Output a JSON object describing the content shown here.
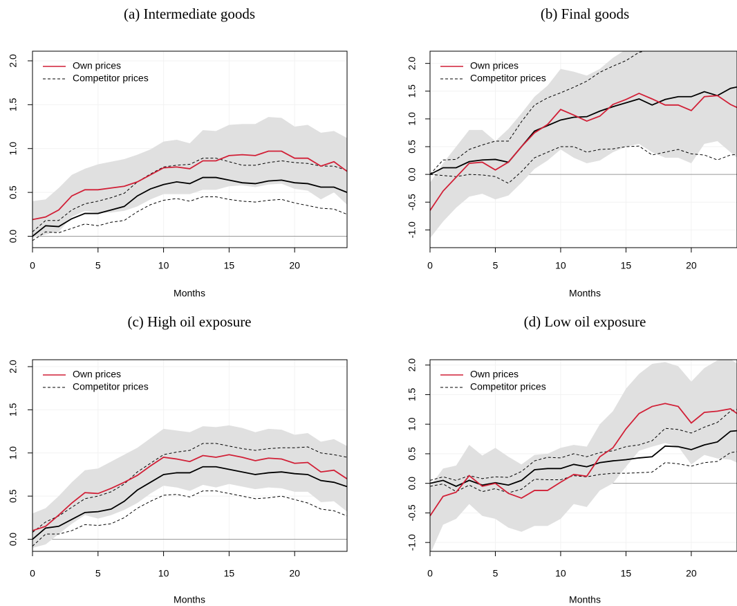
{
  "chart_data": [
    {
      "type": "line",
      "title": "(a) Intermediate goods",
      "x_label": "Months",
      "x": [
        0,
        1,
        2,
        3,
        4,
        5,
        6,
        7,
        8,
        9,
        10,
        11,
        12,
        13,
        14,
        15,
        16,
        17,
        18,
        19,
        20,
        21,
        22,
        23,
        24
      ],
      "xlim": [
        0,
        24
      ],
      "xticks": [
        0,
        5,
        10,
        15,
        20
      ],
      "ylim": [
        -0.13,
        2.11
      ],
      "yticks": [
        {
          "value": 0,
          "label": "0.0"
        },
        0.5,
        {
          "value": 1,
          "label": "1.0"
        },
        1.5,
        {
          "value": 2,
          "label": "2.0"
        }
      ],
      "grid": true,
      "legend": "top-left",
      "series": [
        {
          "name": "Own prices",
          "color": "#d11f36",
          "values": [
            0.19,
            0.22,
            0.3,
            0.46,
            0.53,
            0.53,
            0.55,
            0.57,
            0.62,
            0.7,
            0.78,
            0.79,
            0.77,
            0.86,
            0.86,
            0.92,
            0.93,
            0.92,
            0.97,
            0.97,
            0.89,
            0.89,
            0.8,
            0.85,
            0.74
          ],
          "band": {
            "color": "#e0e0e0",
            "upper": [
              0.4,
              0.42,
              0.55,
              0.7,
              0.77,
              0.82,
              0.85,
              0.88,
              0.93,
              0.99,
              1.08,
              1.1,
              1.06,
              1.21,
              1.2,
              1.27,
              1.28,
              1.28,
              1.36,
              1.35,
              1.25,
              1.27,
              1.18,
              1.2,
              1.12
            ],
            "lower": [
              -0.02,
              0.02,
              0.05,
              0.22,
              0.29,
              0.27,
              0.27,
              0.29,
              0.34,
              0.42,
              0.48,
              0.48,
              0.48,
              0.53,
              0.53,
              0.57,
              0.58,
              0.56,
              0.59,
              0.6,
              0.54,
              0.52,
              0.42,
              0.5,
              0.36
            ]
          }
        },
        {
          "name": "Competitor prices",
          "color": "#000000",
          "legend_dash": true,
          "values": [
            0.0,
            0.12,
            0.11,
            0.2,
            0.26,
            0.26,
            0.3,
            0.34,
            0.46,
            0.54,
            0.59,
            0.62,
            0.6,
            0.67,
            0.67,
            0.64,
            0.61,
            0.6,
            0.63,
            0.64,
            0.61,
            0.6,
            0.56,
            0.56,
            0.5
          ],
          "bounds": {
            "dash": true,
            "upper": [
              0.05,
              0.18,
              0.18,
              0.3,
              0.37,
              0.4,
              0.44,
              0.49,
              0.62,
              0.71,
              0.79,
              0.81,
              0.82,
              0.89,
              0.89,
              0.85,
              0.81,
              0.81,
              0.84,
              0.86,
              0.84,
              0.83,
              0.8,
              0.8,
              0.75
            ],
            "lower": [
              -0.05,
              0.05,
              0.04,
              0.09,
              0.14,
              0.12,
              0.16,
              0.18,
              0.28,
              0.36,
              0.41,
              0.43,
              0.4,
              0.45,
              0.45,
              0.42,
              0.4,
              0.39,
              0.41,
              0.42,
              0.38,
              0.35,
              0.32,
              0.31,
              0.25
            ]
          }
        }
      ]
    },
    {
      "type": "line",
      "title": "(b) Final goods",
      "x_label": "Months",
      "x": [
        0,
        1,
        2,
        3,
        4,
        5,
        6,
        7,
        8,
        9,
        10,
        11,
        12,
        13,
        14,
        15,
        16,
        17,
        18,
        19,
        20,
        21,
        22,
        23,
        24
      ],
      "xlim": [
        0,
        23.5
      ],
      "xticks": [
        0,
        5,
        10,
        15,
        20
      ],
      "ylim": [
        -1.32,
        2.22
      ],
      "yticks": [
        {
          "value": -1,
          "label": "-1.0"
        },
        -0.5,
        {
          "value": 0,
          "label": "0.0"
        },
        0.5,
        {
          "value": 1,
          "label": "1.0"
        },
        1.5,
        {
          "value": 2,
          "label": "2.0"
        }
      ],
      "grid": true,
      "legend": "top-left",
      "series": [
        {
          "name": "Own prices",
          "color": "#d11f36",
          "values": [
            -0.65,
            -0.3,
            -0.05,
            0.2,
            0.22,
            0.08,
            0.22,
            0.5,
            0.75,
            0.9,
            1.17,
            1.07,
            0.96,
            1.05,
            1.26,
            1.35,
            1.46,
            1.36,
            1.25,
            1.25,
            1.15,
            1.4,
            1.42,
            1.26,
            1.15
          ],
          "band": {
            "color": "#e0e0e0",
            "upper": [
              -0.15,
              0.2,
              0.5,
              0.8,
              0.8,
              0.6,
              0.82,
              1.1,
              1.4,
              1.6,
              1.9,
              1.85,
              1.78,
              1.9,
              2.1,
              2.25,
              2.3,
              2.3,
              2.3,
              2.3,
              2.3,
              2.3,
              2.3,
              2.25,
              2.2
            ],
            "lower": [
              -1.15,
              -0.85,
              -0.6,
              -0.4,
              -0.35,
              -0.45,
              -0.38,
              -0.15,
              0.1,
              0.25,
              0.45,
              0.3,
              0.2,
              0.25,
              0.4,
              0.5,
              0.55,
              0.4,
              0.3,
              0.3,
              0.2,
              0.55,
              0.6,
              0.4,
              0.2
            ]
          }
        },
        {
          "name": "Competitor prices",
          "color": "#000000",
          "legend_dash": true,
          "values": [
            0.0,
            0.12,
            0.12,
            0.23,
            0.26,
            0.27,
            0.22,
            0.5,
            0.78,
            0.88,
            0.98,
            1.03,
            1.04,
            1.14,
            1.22,
            1.29,
            1.36,
            1.25,
            1.35,
            1.4,
            1.4,
            1.49,
            1.42,
            1.55,
            1.6
          ],
          "bounds": {
            "dash": true,
            "upper": [
              0.0,
              0.26,
              0.27,
              0.45,
              0.53,
              0.6,
              0.6,
              0.95,
              1.25,
              1.38,
              1.47,
              1.57,
              1.68,
              1.84,
              1.95,
              2.05,
              2.2,
              2.25,
              2.3,
              2.35,
              2.35,
              2.4,
              2.4,
              2.45,
              2.5
            ],
            "lower": [
              0.0,
              -0.02,
              -0.04,
              0.0,
              -0.01,
              -0.04,
              -0.16,
              0.05,
              0.3,
              0.4,
              0.5,
              0.5,
              0.4,
              0.45,
              0.46,
              0.5,
              0.51,
              0.35,
              0.4,
              0.45,
              0.37,
              0.35,
              0.26,
              0.35,
              0.37
            ]
          }
        }
      ]
    },
    {
      "type": "line",
      "title": "(c) High oil exposure",
      "x_label": "Months",
      "x": [
        0,
        1,
        2,
        3,
        4,
        5,
        6,
        7,
        8,
        9,
        10,
        11,
        12,
        13,
        14,
        15,
        16,
        17,
        18,
        19,
        20,
        21,
        22,
        23,
        24
      ],
      "xlim": [
        0,
        24
      ],
      "xticks": [
        0,
        5,
        10,
        15,
        20
      ],
      "ylim": [
        -0.14,
        2.08
      ],
      "yticks": [
        {
          "value": 0,
          "label": "0.0"
        },
        0.5,
        {
          "value": 1,
          "label": "1.0"
        },
        1.5,
        {
          "value": 2,
          "label": "2.0"
        }
      ],
      "grid": true,
      "legend": "top-left",
      "series": [
        {
          "name": "Own prices",
          "color": "#d11f36",
          "values": [
            0.1,
            0.15,
            0.28,
            0.42,
            0.54,
            0.53,
            0.59,
            0.66,
            0.74,
            0.85,
            0.95,
            0.93,
            0.9,
            0.97,
            0.95,
            0.98,
            0.95,
            0.91,
            0.94,
            0.93,
            0.88,
            0.89,
            0.78,
            0.8,
            0.7
          ],
          "band": {
            "color": "#e0e0e0",
            "upper": [
              0.3,
              0.36,
              0.5,
              0.66,
              0.8,
              0.82,
              0.9,
              0.98,
              1.06,
              1.17,
              1.28,
              1.26,
              1.24,
              1.31,
              1.3,
              1.32,
              1.29,
              1.24,
              1.28,
              1.27,
              1.21,
              1.23,
              1.13,
              1.16,
              1.08
            ],
            "lower": [
              -0.1,
              -0.06,
              0.06,
              0.18,
              0.28,
              0.24,
              0.28,
              0.34,
              0.42,
              0.53,
              0.62,
              0.6,
              0.56,
              0.63,
              0.6,
              0.64,
              0.61,
              0.58,
              0.6,
              0.59,
              0.55,
              0.55,
              0.43,
              0.44,
              0.32
            ]
          }
        },
        {
          "name": "Competitor prices",
          "color": "#000000",
          "legend_dash": true,
          "values": [
            0.0,
            0.13,
            0.15,
            0.23,
            0.31,
            0.32,
            0.35,
            0.44,
            0.57,
            0.66,
            0.75,
            0.77,
            0.77,
            0.84,
            0.84,
            0.81,
            0.78,
            0.75,
            0.77,
            0.78,
            0.76,
            0.75,
            0.68,
            0.66,
            0.61
          ],
          "bounds": {
            "dash": true,
            "upper": [
              0.08,
              0.2,
              0.27,
              0.37,
              0.47,
              0.5,
              0.55,
              0.64,
              0.78,
              0.88,
              0.98,
              1.01,
              1.03,
              1.11,
              1.11,
              1.08,
              1.05,
              1.03,
              1.05,
              1.06,
              1.06,
              1.07,
              1.0,
              0.98,
              0.95
            ],
            "lower": [
              -0.08,
              0.06,
              0.06,
              0.1,
              0.17,
              0.16,
              0.18,
              0.25,
              0.36,
              0.44,
              0.51,
              0.52,
              0.49,
              0.56,
              0.56,
              0.53,
              0.5,
              0.47,
              0.48,
              0.5,
              0.46,
              0.42,
              0.35,
              0.33,
              0.27
            ]
          }
        }
      ]
    },
    {
      "type": "line",
      "title": "(d) Low oil exposure",
      "x_label": "Months",
      "x": [
        0,
        1,
        2,
        3,
        4,
        5,
        6,
        7,
        8,
        9,
        10,
        11,
        12,
        13,
        14,
        15,
        16,
        17,
        18,
        19,
        20,
        21,
        22,
        23,
        24
      ],
      "xlim": [
        0,
        23.5
      ],
      "xticks": [
        0,
        5,
        10,
        15,
        20
      ],
      "ylim": [
        -1.15,
        2.09
      ],
      "yticks": [
        {
          "value": -1,
          "label": "-1.0"
        },
        -0.5,
        {
          "value": 0,
          "label": "0.0"
        },
        0.5,
        {
          "value": 1,
          "label": "1.0"
        },
        1.5,
        {
          "value": 2,
          "label": "2.0"
        }
      ],
      "grid": true,
      "legend": "top-left",
      "series": [
        {
          "name": "Own prices",
          "color": "#d11f36",
          "values": [
            -0.55,
            -0.22,
            -0.15,
            0.13,
            -0.05,
            0.0,
            -0.17,
            -0.25,
            -0.12,
            -0.12,
            0.02,
            0.15,
            0.12,
            0.45,
            0.6,
            0.92,
            1.18,
            1.3,
            1.35,
            1.3,
            1.02,
            1.2,
            1.22,
            1.26,
            1.1
          ],
          "band": {
            "color": "#e0e0e0",
            "upper": [
              -0.05,
              0.25,
              0.3,
              0.65,
              0.47,
              0.6,
              0.45,
              0.32,
              0.48,
              0.5,
              0.6,
              0.65,
              0.62,
              1.0,
              1.22,
              1.6,
              1.85,
              2.02,
              2.05,
              1.98,
              1.72,
              1.95,
              2.08,
              2.1,
              1.95
            ],
            "lower": [
              -1.2,
              -0.7,
              -0.6,
              -0.35,
              -0.55,
              -0.6,
              -0.75,
              -0.82,
              -0.72,
              -0.72,
              -0.6,
              -0.35,
              -0.4,
              -0.12,
              0.0,
              0.28,
              0.55,
              0.62,
              0.68,
              0.62,
              0.32,
              0.48,
              0.42,
              0.4,
              0.3
            ]
          }
        },
        {
          "name": "Competitor prices",
          "color": "#000000",
          "legend_dash": true,
          "values": [
            0.0,
            0.05,
            -0.05,
            0.05,
            -0.03,
            0.01,
            -0.03,
            0.05,
            0.23,
            0.25,
            0.25,
            0.32,
            0.28,
            0.35,
            0.38,
            0.4,
            0.43,
            0.45,
            0.63,
            0.62,
            0.57,
            0.65,
            0.7,
            0.88,
            0.9
          ],
          "bounds": {
            "dash": true,
            "upper": [
              0.05,
              0.11,
              0.05,
              0.13,
              0.08,
              0.11,
              0.1,
              0.2,
              0.38,
              0.44,
              0.43,
              0.5,
              0.45,
              0.52,
              0.55,
              0.62,
              0.65,
              0.72,
              0.93,
              0.91,
              0.85,
              0.95,
              1.03,
              1.22,
              1.28
            ],
            "lower": [
              -0.05,
              -0.01,
              -0.14,
              -0.03,
              -0.14,
              -0.09,
              -0.16,
              -0.1,
              0.07,
              0.06,
              0.06,
              0.13,
              0.11,
              0.15,
              0.17,
              0.17,
              0.18,
              0.19,
              0.35,
              0.33,
              0.29,
              0.35,
              0.37,
              0.52,
              0.55
            ]
          }
        }
      ]
    }
  ]
}
